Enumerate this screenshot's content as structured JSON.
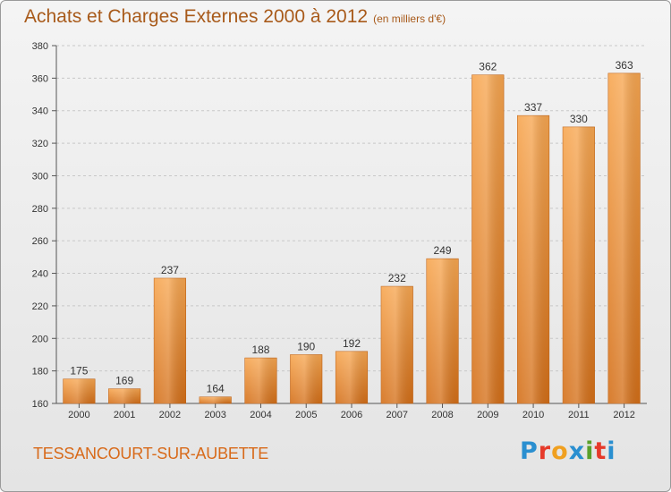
{
  "header": {
    "title": "Achats et Charges Externes 2000 à 2012",
    "unit": "(en milliers d'€)"
  },
  "footer": {
    "commune": "TESSANCOURT-SUR-AUBETTE",
    "logo_text": "Proxiti"
  },
  "colors": {
    "bar_top": "#f7a650",
    "bar_bottom": "#d46f18",
    "title": "#a85a1a",
    "commune": "#d86a1a"
  },
  "chart_data": {
    "type": "bar",
    "categories": [
      "2000",
      "2001",
      "2002",
      "2003",
      "2004",
      "2005",
      "2006",
      "2007",
      "2008",
      "2009",
      "2010",
      "2011",
      "2012"
    ],
    "values": [
      175,
      169,
      237,
      164,
      188,
      190,
      192,
      232,
      249,
      362,
      337,
      330,
      363
    ],
    "ylim": [
      160,
      380
    ],
    "yticks": [
      160,
      180,
      200,
      220,
      240,
      260,
      280,
      300,
      320,
      340,
      360,
      380
    ],
    "grid": "horizontal-dashed",
    "data_labels": true
  }
}
